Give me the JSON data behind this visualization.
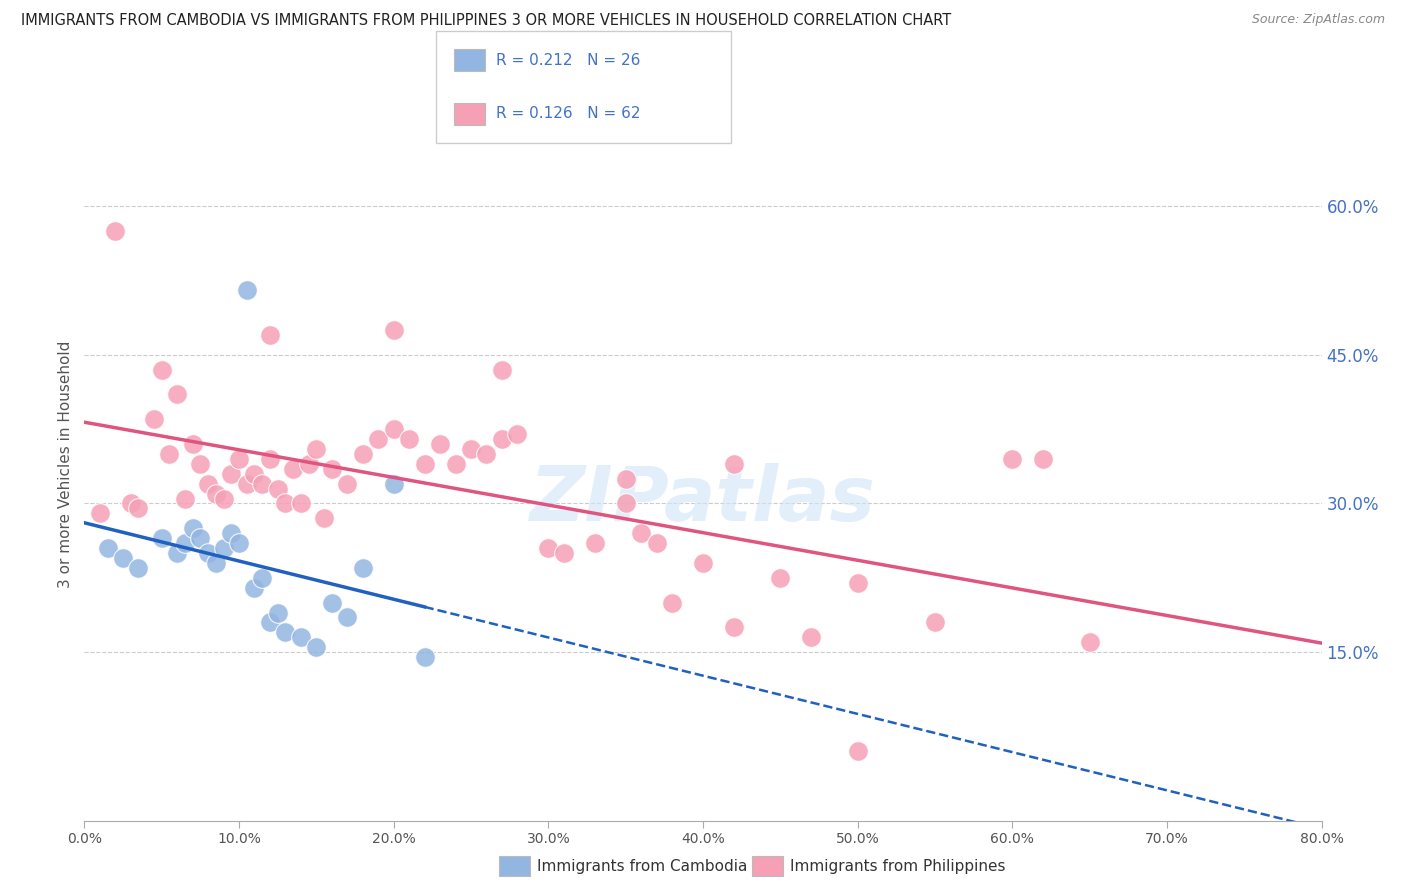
{
  "title": "IMMIGRANTS FROM CAMBODIA VS IMMIGRANTS FROM PHILIPPINES 3 OR MORE VEHICLES IN HOUSEHOLD CORRELATION CHART",
  "source": "Source: ZipAtlas.com",
  "ylabel": "3 or more Vehicles in Household",
  "xlim": [
    0.0,
    80.0
  ],
  "ylim": [
    -2.0,
    70.0
  ],
  "ytick_vals": [
    15.0,
    30.0,
    45.0,
    60.0
  ],
  "xtick_vals": [
    0.0,
    10.0,
    20.0,
    30.0,
    40.0,
    50.0,
    60.0,
    70.0,
    80.0
  ],
  "cambodia_color": "#93b5e1",
  "philippines_color": "#f5a0b5",
  "cambodia_line_color": "#2060c0",
  "philippines_line_color": "#e05580",
  "cambodia_R": 0.212,
  "cambodia_N": 26,
  "philippines_R": 0.126,
  "philippines_N": 62,
  "watermark": "ZIPatlas",
  "background": "#ffffff",
  "grid_color": "#cccccc",
  "right_label_color": "#4472c4",
  "title_color": "#222222",
  "source_color": "#888888",
  "cam_x": [
    1.5,
    2.5,
    3.5,
    5.0,
    6.0,
    6.5,
    7.0,
    7.5,
    8.0,
    8.5,
    9.0,
    9.5,
    10.0,
    10.5,
    11.0,
    11.5,
    12.0,
    12.5,
    13.0,
    14.0,
    15.0,
    16.0,
    17.0,
    18.0,
    20.0,
    22.0
  ],
  "cam_y": [
    25.5,
    24.5,
    23.5,
    26.5,
    25.0,
    26.0,
    27.5,
    26.5,
    25.0,
    24.0,
    25.5,
    27.0,
    26.0,
    51.5,
    21.5,
    22.5,
    18.0,
    19.0,
    17.0,
    16.5,
    15.5,
    20.0,
    18.5,
    23.5,
    32.0,
    14.5
  ],
  "phi_x": [
    1.0,
    2.0,
    3.0,
    3.5,
    4.5,
    5.0,
    5.5,
    6.0,
    6.5,
    7.0,
    7.5,
    8.0,
    8.5,
    9.0,
    9.5,
    10.0,
    10.5,
    11.0,
    11.5,
    12.0,
    12.5,
    13.0,
    13.5,
    14.0,
    14.5,
    15.0,
    15.5,
    16.0,
    17.0,
    18.0,
    19.0,
    20.0,
    21.0,
    22.0,
    23.0,
    24.0,
    25.0,
    26.0,
    27.0,
    28.0,
    30.0,
    31.0,
    33.0,
    35.0,
    36.0,
    37.0,
    38.0,
    40.0,
    42.0,
    45.0,
    47.0,
    50.0,
    55.0,
    60.0,
    65.0,
    12.0,
    20.0,
    27.0,
    35.0,
    42.0,
    50.0,
    62.0
  ],
  "phi_y": [
    29.0,
    57.5,
    30.0,
    29.5,
    38.5,
    43.5,
    35.0,
    41.0,
    30.5,
    36.0,
    34.0,
    32.0,
    31.0,
    30.5,
    33.0,
    34.5,
    32.0,
    33.0,
    32.0,
    34.5,
    31.5,
    30.0,
    33.5,
    30.0,
    34.0,
    35.5,
    28.5,
    33.5,
    32.0,
    35.0,
    36.5,
    37.5,
    36.5,
    34.0,
    36.0,
    34.0,
    35.5,
    35.0,
    36.5,
    37.0,
    25.5,
    25.0,
    26.0,
    30.0,
    27.0,
    26.0,
    20.0,
    24.0,
    17.5,
    22.5,
    16.5,
    5.0,
    18.0,
    34.5,
    16.0,
    47.0,
    47.5,
    43.5,
    32.5,
    34.0,
    22.0,
    34.5
  ]
}
